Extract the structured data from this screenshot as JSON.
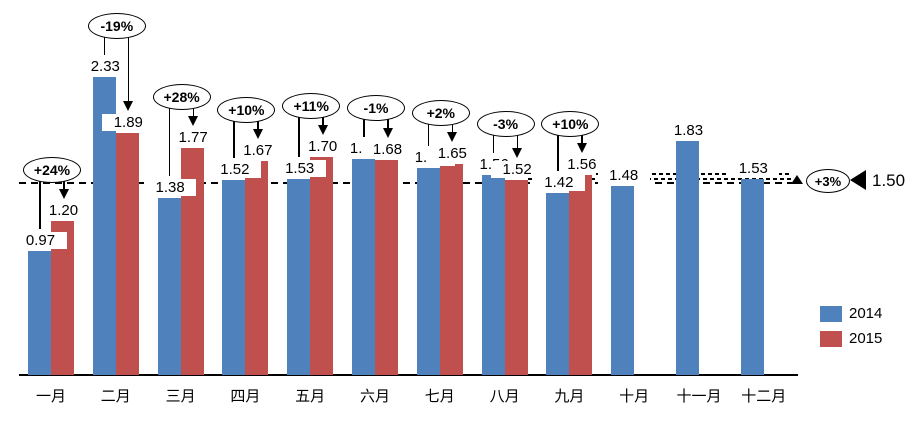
{
  "chart_data": {
    "type": "bar",
    "title": "",
    "xlabel": "",
    "ylabel": "",
    "categories": [
      "一月",
      "二月",
      "三月",
      "四月",
      "五月",
      "六月",
      "七月",
      "八月",
      "九月",
      "十月",
      "十一月",
      "十二月"
    ],
    "series": [
      {
        "name": "2014",
        "color": "#4F81BD",
        "values": [
          0.97,
          2.33,
          1.38,
          1.52,
          1.53,
          1.69,
          1.62,
          1.56,
          1.42,
          1.48,
          1.83,
          1.53
        ]
      },
      {
        "name": "2015",
        "color": "#C0504D",
        "values": [
          1.2,
          1.89,
          1.77,
          1.67,
          1.7,
          1.68,
          1.65,
          1.52,
          1.56,
          null,
          null,
          null
        ]
      }
    ],
    "pct_change": [
      "+24%",
      "-19%",
      "+28%",
      "+10%",
      "+11%",
      "-1%",
      "+2%",
      "-3%",
      "+10%",
      null,
      null,
      null
    ],
    "reference": {
      "value": 1.5,
      "label": "1.50",
      "pct": "+3%"
    },
    "ylim": [
      0,
      2.5
    ],
    "grid": false,
    "legend_position": "right",
    "value_format": "2-decimal"
  },
  "legend": {
    "items": [
      {
        "label": "2014",
        "color": "#4F81BD"
      },
      {
        "label": "2015",
        "color": "#C0504D"
      }
    ]
  },
  "colors": {
    "series_2014": "#4F81BD",
    "series_2015": "#C0504D",
    "annotation": "#000000",
    "background": "#FFFFFF"
  }
}
